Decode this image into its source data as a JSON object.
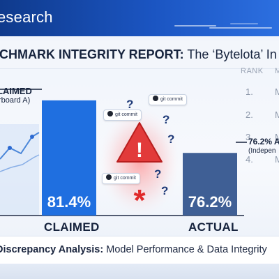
{
  "header": {
    "brand": "esearch"
  },
  "report_title": {
    "strong": "NCHMARK INTEGRITY REPORT:",
    "rest": " The ‘Bytelota’ In"
  },
  "table": {
    "col_rank": "RANK",
    "col_m": "M",
    "rows": [
      {
        "rank": "1.",
        "cell": "M"
      },
      {
        "rank": "2.",
        "cell": "M"
      },
      {
        "rank": "3.",
        "cell": "M"
      },
      {
        "rank": "4.",
        "cell": "M"
      }
    ]
  },
  "badges": [
    "git commit",
    "git commit",
    "git commit"
  ],
  "question_mark": "?",
  "warning_symbol": "!",
  "asterisk": "*",
  "annotations": {
    "claimed_title": "LAIMED",
    "claimed_sub": "rboard A)",
    "actual_title": "76.2% A",
    "actual_sub": "(Indepen"
  },
  "footer": {
    "strong": "Discrepancy Analysis:",
    "rest": " Model Performance & Data Integrity"
  },
  "colors": {
    "header": "#1b55c2",
    "claimed_bar": "#1f6fe0",
    "actual_bar": "#3f5f95",
    "warning": "#e23a3a"
  },
  "chart_data": {
    "type": "bar",
    "categories": [
      "CLAIMED",
      "ACTUAL"
    ],
    "values": [
      81.4,
      76.2
    ],
    "value_labels": [
      "81.4%",
      "76.2%"
    ],
    "ylim": [
      70,
      82.5
    ]
  }
}
